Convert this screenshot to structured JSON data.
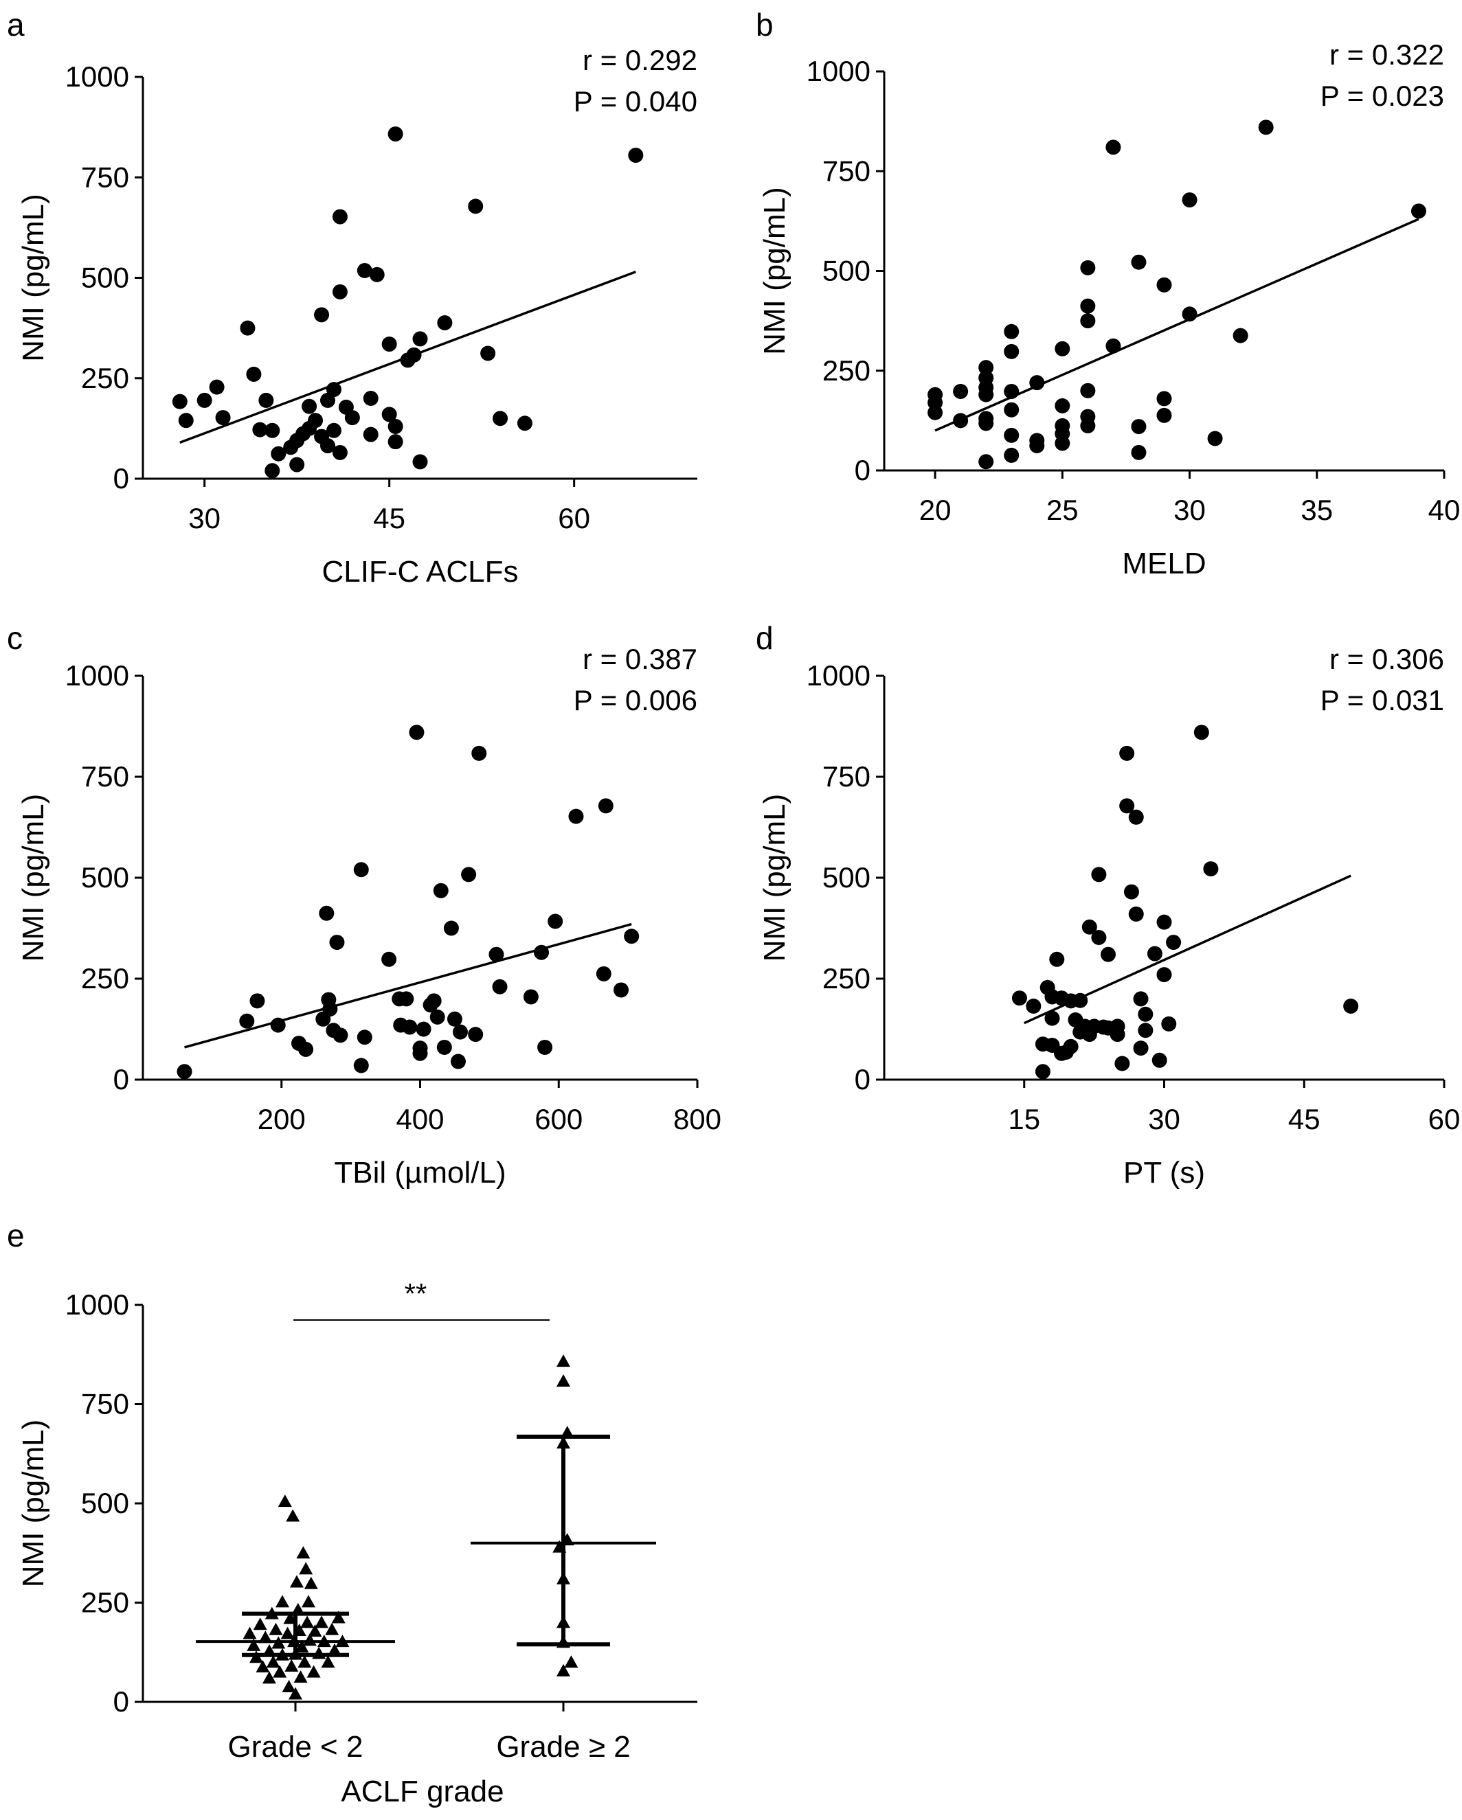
{
  "chart_data": [
    {
      "type": "scatter",
      "panel": "a",
      "xlabel": "CLIF-C ACLFs",
      "ylabel": "NMI (pg/mL)",
      "xlim": [
        25,
        70
      ],
      "ylim": [
        0,
        1000
      ],
      "xticks": [
        30,
        45,
        60
      ],
      "yticks": [
        0,
        250,
        500,
        750,
        1000
      ],
      "stats": {
        "r": "r = 0.292",
        "p": "P = 0.040"
      },
      "fit": {
        "x": [
          28,
          65
        ],
        "y": [
          90,
          515
        ]
      },
      "points": [
        [
          28,
          192
        ],
        [
          28.5,
          145
        ],
        [
          30,
          195
        ],
        [
          31,
          228
        ],
        [
          31.5,
          152
        ],
        [
          33.5,
          375
        ],
        [
          34,
          260
        ],
        [
          34.5,
          122
        ],
        [
          35,
          195
        ],
        [
          35.5,
          120
        ],
        [
          35.5,
          20
        ],
        [
          36,
          62
        ],
        [
          37,
          78
        ],
        [
          37.5,
          95
        ],
        [
          37.5,
          35
        ],
        [
          38,
          112
        ],
        [
          38.5,
          125
        ],
        [
          38.5,
          180
        ],
        [
          39,
          145
        ],
        [
          39.5,
          408
        ],
        [
          39.5,
          105
        ],
        [
          40,
          195
        ],
        [
          40,
          82
        ],
        [
          40.5,
          222
        ],
        [
          40.5,
          120
        ],
        [
          41,
          65
        ],
        [
          41,
          652
        ],
        [
          41,
          465
        ],
        [
          41.5,
          178
        ],
        [
          42,
          152
        ],
        [
          43,
          518
        ],
        [
          43.5,
          200
        ],
        [
          43.5,
          110
        ],
        [
          44,
          508
        ],
        [
          45,
          160
        ],
        [
          45,
          335
        ],
        [
          45.5,
          130
        ],
        [
          45.5,
          858
        ],
        [
          45.5,
          92
        ],
        [
          46.5,
          295
        ],
        [
          47,
          308
        ],
        [
          47.5,
          348
        ],
        [
          47.5,
          42
        ],
        [
          49.5,
          388
        ],
        [
          52,
          678
        ],
        [
          53,
          312
        ],
        [
          54,
          150
        ],
        [
          56,
          138
        ],
        [
          65,
          805
        ]
      ]
    },
    {
      "type": "scatter",
      "panel": "b",
      "xlabel": "MELD",
      "ylabel": "NMI (pg/mL)",
      "xlim": [
        18,
        40
      ],
      "ylim": [
        0,
        1000
      ],
      "xticks": [
        20,
        25,
        30,
        35,
        40
      ],
      "yticks": [
        0,
        250,
        500,
        750,
        1000
      ],
      "stats": {
        "r": "r = 0.322",
        "p": "P = 0.023"
      },
      "fit": {
        "x": [
          20,
          39
        ],
        "y": [
          100,
          630
        ]
      },
      "points": [
        [
          20,
          190
        ],
        [
          20,
          170
        ],
        [
          20,
          145
        ],
        [
          21,
          198
        ],
        [
          21,
          125
        ],
        [
          22,
          258
        ],
        [
          22,
          232
        ],
        [
          22,
          208
        ],
        [
          22,
          190
        ],
        [
          22,
          130
        ],
        [
          22,
          118
        ],
        [
          22,
          22
        ],
        [
          23,
          348
        ],
        [
          23,
          298
        ],
        [
          23,
          198
        ],
        [
          23,
          152
        ],
        [
          23,
          88
        ],
        [
          23,
          38
        ],
        [
          24,
          220
        ],
        [
          24,
          75
        ],
        [
          24,
          62
        ],
        [
          25,
          305
        ],
        [
          25,
          162
        ],
        [
          25,
          112
        ],
        [
          25,
          92
        ],
        [
          25,
          68
        ],
        [
          26,
          508
        ],
        [
          26,
          412
        ],
        [
          26,
          375
        ],
        [
          26,
          200
        ],
        [
          26,
          135
        ],
        [
          26,
          112
        ],
        [
          27,
          810
        ],
        [
          27,
          312
        ],
        [
          28,
          522
        ],
        [
          28,
          110
        ],
        [
          28,
          45
        ],
        [
          29,
          465
        ],
        [
          29,
          180
        ],
        [
          29,
          138
        ],
        [
          30,
          678
        ],
        [
          30,
          392
        ],
        [
          31,
          80
        ],
        [
          32,
          338
        ],
        [
          33,
          860
        ],
        [
          39,
          650
        ]
      ]
    },
    {
      "type": "scatter",
      "panel": "c",
      "xlabel": "TBil (µmol/L)",
      "ylabel": "NMI (pg/mL)",
      "xlim": [
        0,
        800
      ],
      "ylim": [
        0,
        1000
      ],
      "xticks": [
        200,
        400,
        600,
        800
      ],
      "yticks": [
        0,
        250,
        500,
        750,
        1000
      ],
      "stats": {
        "r": "r = 0.387",
        "p": "P = 0.006"
      },
      "fit": {
        "x": [
          60,
          705
        ],
        "y": [
          80,
          385
        ]
      },
      "points": [
        [
          60,
          20
        ],
        [
          150,
          145
        ],
        [
          165,
          195
        ],
        [
          195,
          135
        ],
        [
          225,
          90
        ],
        [
          235,
          75
        ],
        [
          260,
          150
        ],
        [
          265,
          412
        ],
        [
          268,
          198
        ],
        [
          270,
          175
        ],
        [
          275,
          122
        ],
        [
          280,
          340
        ],
        [
          285,
          110
        ],
        [
          315,
          520
        ],
        [
          315,
          35
        ],
        [
          320,
          105
        ],
        [
          355,
          298
        ],
        [
          370,
          200
        ],
        [
          372,
          135
        ],
        [
          380,
          200
        ],
        [
          385,
          130
        ],
        [
          395,
          860
        ],
        [
          400,
          65
        ],
        [
          400,
          78
        ],
        [
          405,
          125
        ],
        [
          415,
          185
        ],
        [
          420,
          195
        ],
        [
          425,
          155
        ],
        [
          430,
          468
        ],
        [
          435,
          80
        ],
        [
          445,
          375
        ],
        [
          450,
          150
        ],
        [
          455,
          45
        ],
        [
          458,
          118
        ],
        [
          470,
          508
        ],
        [
          480,
          112
        ],
        [
          485,
          808
        ],
        [
          510,
          310
        ],
        [
          515,
          230
        ],
        [
          560,
          205
        ],
        [
          575,
          315
        ],
        [
          580,
          80
        ],
        [
          595,
          392
        ],
        [
          625,
          652
        ],
        [
          665,
          262
        ],
        [
          668,
          678
        ],
        [
          690,
          222
        ],
        [
          705,
          355
        ]
      ]
    },
    {
      "type": "scatter",
      "panel": "d",
      "xlabel": "PT (s)",
      "ylabel": "NMI (pg/mL)",
      "xlim": [
        0,
        60
      ],
      "ylim": [
        0,
        1000
      ],
      "xticks": [
        15,
        30,
        45,
        60
      ],
      "yticks": [
        0,
        250,
        500,
        750,
        1000
      ],
      "stats": {
        "r": "r = 0.306",
        "p": "P = 0.031"
      },
      "fit": {
        "x": [
          15,
          50
        ],
        "y": [
          140,
          505
        ]
      },
      "points": [
        [
          14.5,
          202
        ],
        [
          16,
          182
        ],
        [
          17,
          88
        ],
        [
          17,
          20
        ],
        [
          17.5,
          228
        ],
        [
          18,
          205
        ],
        [
          18,
          152
        ],
        [
          18,
          85
        ],
        [
          18.5,
          298
        ],
        [
          19,
          202
        ],
        [
          19,
          65
        ],
        [
          19.5,
          68
        ],
        [
          20,
          82
        ],
        [
          20,
          195
        ],
        [
          20.5,
          148
        ],
        [
          21,
          118
        ],
        [
          21,
          196
        ],
        [
          21.5,
          132
        ],
        [
          22,
          378
        ],
        [
          22,
          112
        ],
        [
          22.5,
          132
        ],
        [
          23,
          508
        ],
        [
          23,
          352
        ],
        [
          23.5,
          130
        ],
        [
          24,
          310
        ],
        [
          24,
          128
        ],
        [
          25,
          112
        ],
        [
          25,
          132
        ],
        [
          25.5,
          40
        ],
        [
          26,
          808
        ],
        [
          26,
          678
        ],
        [
          26.5,
          465
        ],
        [
          27,
          410
        ],
        [
          27,
          650
        ],
        [
          27.5,
          200
        ],
        [
          27.5,
          78
        ],
        [
          28,
          162
        ],
        [
          28,
          122
        ],
        [
          29,
          312
        ],
        [
          29.5,
          48
        ],
        [
          30,
          260
        ],
        [
          30,
          390
        ],
        [
          30.5,
          138
        ],
        [
          31,
          340
        ],
        [
          34,
          860
        ],
        [
          35,
          522
        ],
        [
          50,
          182
        ]
      ]
    },
    {
      "type": "scatter",
      "panel": "e",
      "xlabel": "ACLF grade",
      "ylabel": "NMI (pg/mL)",
      "ylim": [
        0,
        1000
      ],
      "yticks": [
        0,
        250,
        500,
        750,
        1000
      ],
      "categories": [
        "Grade < 2",
        "Grade ≥ 2"
      ],
      "significance": "**",
      "groups": [
        {
          "category": "Grade < 2",
          "median": 152,
          "iqr": [
            118,
            222
          ],
          "points": [
            [
              -0.35,
              172
            ],
            [
              -0.32,
              142
            ],
            [
              -0.3,
              112
            ],
            [
              -0.27,
              195
            ],
            [
              -0.25,
              88
            ],
            [
              -0.23,
              162
            ],
            [
              -0.2,
              128
            ],
            [
              -0.2,
              60
            ],
            [
              -0.18,
              222
            ],
            [
              -0.17,
              100
            ],
            [
              -0.15,
              182
            ],
            [
              -0.13,
              148
            ],
            [
              -0.12,
              75
            ],
            [
              -0.1,
              252
            ],
            [
              -0.1,
              118
            ],
            [
              -0.08,
              505
            ],
            [
              -0.06,
              172
            ],
            [
              -0.05,
              38
            ],
            [
              -0.04,
              210
            ],
            [
              -0.03,
              90
            ],
            [
              -0.02,
              468
            ],
            [
              -0.01,
              152
            ],
            [
              0,
              20
            ],
            [
              0,
              120
            ],
            [
              0.01,
              302
            ],
            [
              0.02,
              232
            ],
            [
              0.03,
              180
            ],
            [
              0.04,
              62
            ],
            [
              0.05,
              138
            ],
            [
              0.06,
              375
            ],
            [
              0.07,
              100
            ],
            [
              0.08,
              335
            ],
            [
              0.09,
              200
            ],
            [
              0.1,
              252
            ],
            [
              0.11,
              155
            ],
            [
              0.12,
              298
            ],
            [
              0.14,
              75
            ],
            [
              0.15,
              178
            ],
            [
              0.18,
              122
            ],
            [
              0.2,
              200
            ],
            [
              0.22,
              152
            ],
            [
              0.25,
              100
            ],
            [
              0.28,
              182
            ],
            [
              0.3,
              130
            ],
            [
              0.33,
              212
            ],
            [
              0.36,
              152
            ]
          ]
        },
        {
          "category": "Grade ≥ 2",
          "median": 400,
          "iqr": [
            145,
            668
          ],
          "points": [
            [
              0,
              858
            ],
            [
              0,
              808
            ],
            [
              0.05,
              678
            ],
            [
              0,
              652
            ],
            [
              0.05,
              408
            ],
            [
              -0.05,
              390
            ],
            [
              0,
              310
            ],
            [
              0,
              200
            ],
            [
              0,
              150
            ],
            [
              0.1,
              100
            ],
            [
              0,
              78
            ]
          ]
        }
      ]
    }
  ]
}
